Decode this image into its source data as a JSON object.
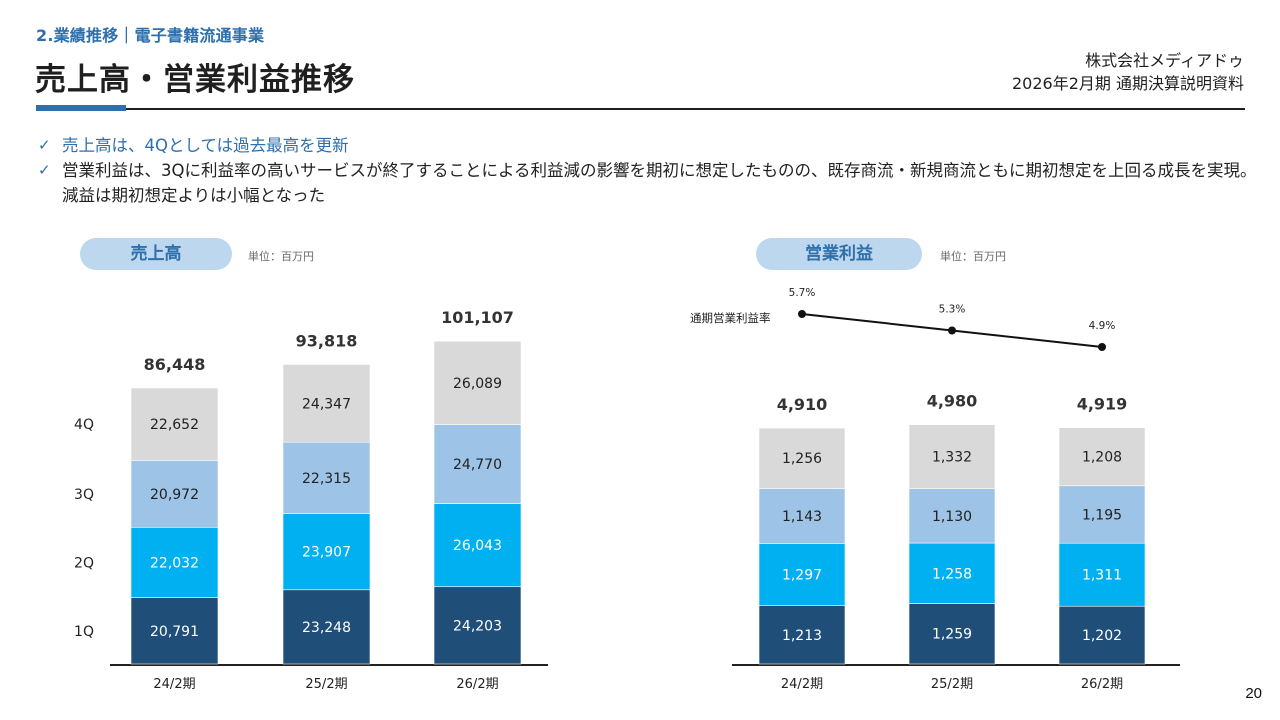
{
  "header": {
    "section": "2.業績推移｜電子書籍流通事業",
    "title": "売上高・営業利益推移",
    "company": "株式会社メディアドゥ",
    "document": "2026年2月期 通期決算説明資料"
  },
  "bullets": [
    {
      "text": "売上高は、4Qとしては過去最高を更新",
      "highlight": true
    },
    {
      "text": "営業利益は、3Qに利益率の高いサービスが終了することによる利益減の影響を期初に想定したものの、既存商流・新規商流ともに期初想定を上回る成長を実現。減益は期初想定よりは小幅となった",
      "highlight": false
    }
  ],
  "page_number": "20",
  "colors": {
    "q1": "#1f4e79",
    "q2": "#00b0f0",
    "q3": "#9dc3e6",
    "q4": "#d9d9d9",
    "accent": "#2e6fac",
    "pill_bg": "#bdd7ee"
  },
  "chart_data": [
    {
      "type": "bar",
      "stacked": true,
      "title": "売上高",
      "unit_label": "単位：百万円",
      "categories": [
        "24/2期",
        "25/2期",
        "26/2期"
      ],
      "series": [
        {
          "name": "1Q",
          "values": [
            20791,
            23248,
            24203
          ]
        },
        {
          "name": "2Q",
          "values": [
            22032,
            23907,
            26043
          ]
        },
        {
          "name": "3Q",
          "values": [
            20972,
            22315,
            24770
          ]
        },
        {
          "name": "4Q",
          "values": [
            22652,
            24347,
            26089
          ]
        }
      ],
      "totals": [
        86448,
        93818,
        101107
      ],
      "legend": "left",
      "ylim": [
        0,
        110000
      ],
      "grid": false
    },
    {
      "type": "bar",
      "stacked": true,
      "title": "営業利益",
      "unit_label": "単位：百万円",
      "categories": [
        "24/2期",
        "25/2期",
        "26/2期"
      ],
      "series": [
        {
          "name": "1Q",
          "values": [
            1213,
            1259,
            1202
          ]
        },
        {
          "name": "2Q",
          "values": [
            1297,
            1258,
            1311
          ]
        },
        {
          "name": "3Q",
          "values": [
            1143,
            1130,
            1195
          ]
        },
        {
          "name": "4Q",
          "values": [
            1256,
            1332,
            1208
          ]
        }
      ],
      "totals": [
        4910,
        4980,
        4919
      ],
      "ylim": [
        0,
        5500
      ],
      "grid": false,
      "line_series": {
        "name": "通期営業利益率",
        "type": "line",
        "values": [
          5.7,
          5.3,
          4.9
        ],
        "labels": [
          "5.7%",
          "5.3%",
          "4.9%"
        ]
      }
    }
  ]
}
